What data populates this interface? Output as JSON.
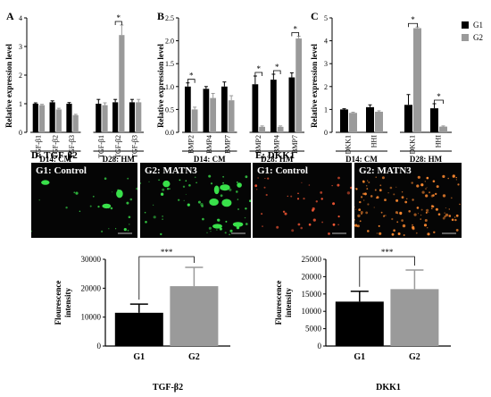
{
  "chart_data": [
    {
      "panel": "A",
      "type": "bar",
      "ylabel": "Relative expression level",
      "ylim": [
        0,
        4
      ],
      "yticks": [
        0,
        1,
        2,
        3,
        4
      ],
      "groups": [
        {
          "label": "D14: CM",
          "categories": [
            "TGF-β1",
            "TGF-β2",
            "TGF-β3"
          ]
        },
        {
          "label": "D28: HM",
          "categories": [
            "TGF-β1",
            "TGF-β2",
            "TGF-β3"
          ]
        }
      ],
      "series": [
        {
          "name": "G1",
          "values": [
            1.0,
            1.05,
            1.0,
            1.0,
            1.05,
            1.05
          ],
          "errors": [
            0.03,
            0.05,
            0.04,
            0.15,
            0.1,
            0.1
          ]
        },
        {
          "name": "G2",
          "values": [
            0.95,
            0.8,
            0.6,
            0.95,
            3.4,
            1.05
          ],
          "errors": [
            0.03,
            0.04,
            0.03,
            0.08,
            0.35,
            0.1
          ]
        }
      ],
      "significance": [
        {
          "group": 1,
          "category": 1,
          "label": "*"
        }
      ]
    },
    {
      "panel": "B",
      "type": "bar",
      "ylabel": "Relative expression level",
      "ylim": [
        0,
        2.5
      ],
      "yticks": [
        0.0,
        0.5,
        1.0,
        1.5,
        2.0,
        2.5
      ],
      "groups": [
        {
          "label": "D14: CM",
          "categories": [
            "BMP2",
            "BMP4",
            "BMP7"
          ]
        },
        {
          "label": "D28: HM",
          "categories": [
            "BMP2",
            "BMP4",
            "BMP7"
          ]
        }
      ],
      "series": [
        {
          "name": "G1",
          "values": [
            1.0,
            0.95,
            1.0,
            1.05,
            1.15,
            1.2
          ],
          "errors": [
            0.08,
            0.05,
            0.1,
            0.18,
            0.12,
            0.1
          ]
        },
        {
          "name": "G2",
          "values": [
            0.5,
            0.75,
            0.7,
            0.12,
            0.12,
            2.05
          ],
          "errors": [
            0.05,
            0.1,
            0.1,
            0.02,
            0.02,
            0.05
          ]
        }
      ],
      "significance": [
        {
          "group": 0,
          "category": 0,
          "label": "*"
        },
        {
          "group": 1,
          "category": 0,
          "label": "*"
        },
        {
          "group": 1,
          "category": 1,
          "label": "*"
        },
        {
          "group": 1,
          "category": 2,
          "label": "*"
        }
      ]
    },
    {
      "panel": "C",
      "type": "bar",
      "ylabel": "Relative expression level",
      "ylim": [
        0,
        5
      ],
      "yticks": [
        0,
        1,
        2,
        3,
        4,
        5
      ],
      "groups": [
        {
          "label": "D14: CM",
          "categories": [
            "DKK1",
            "HHI"
          ]
        },
        {
          "label": "D28: HM",
          "categories": [
            "DKK1",
            "HHI"
          ]
        }
      ],
      "series": [
        {
          "name": "G1",
          "values": [
            1.0,
            1.1,
            1.2,
            1.05
          ],
          "errors": [
            0.03,
            0.1,
            0.45,
            0.2
          ]
        },
        {
          "name": "G2",
          "values": [
            0.85,
            0.9,
            4.55,
            0.25
          ],
          "errors": [
            0.03,
            0.04,
            0.05,
            0.03
          ]
        }
      ],
      "significance": [
        {
          "group": 1,
          "category": 0,
          "label": "*"
        },
        {
          "group": 1,
          "category": 1,
          "label": "*"
        }
      ]
    },
    {
      "panel": "D",
      "type": "bar",
      "title": "D: TGF-β2",
      "xlabel": "TGF-β2",
      "ylabel": "Flourescence intensity",
      "ylim": [
        0,
        30000
      ],
      "yticks": [
        0,
        10000,
        20000,
        30000
      ],
      "categories": [
        "G1",
        "G2"
      ],
      "values": [
        11500,
        20700
      ],
      "errors": [
        3000,
        6500
      ],
      "bar_colors": [
        "#000000",
        "#9a9a9a"
      ],
      "significance": "***"
    },
    {
      "panel": "E",
      "type": "bar",
      "title": "E: DKK1",
      "xlabel": "DKK1",
      "ylabel": "Flourescence intensity",
      "ylim": [
        0,
        25000
      ],
      "yticks": [
        0,
        5000,
        10000,
        15000,
        20000,
        25000
      ],
      "categories": [
        "G1",
        "G2"
      ],
      "values": [
        12800,
        16400
      ],
      "errors": [
        3000,
        5500
      ],
      "bar_colors": [
        "#000000",
        "#9a9a9a"
      ],
      "significance": "***"
    }
  ],
  "legend": {
    "position": "top-right",
    "items": [
      {
        "name": "G1",
        "color": "#000000"
      },
      {
        "name": "G2",
        "color": "#9a9a9a"
      }
    ]
  },
  "micrographs": {
    "D": [
      {
        "label": "G1: Control",
        "tint": "#33ee44"
      },
      {
        "label": "G2: MATN3",
        "tint": "#33ee44"
      }
    ],
    "E": [
      {
        "label": "G1: Control",
        "tint": "#ff5533"
      },
      {
        "label": "G2: MATN3",
        "tint": "#ff7733"
      }
    ]
  },
  "colors": {
    "g1": "#000000",
    "g2": "#9a9a9a"
  }
}
